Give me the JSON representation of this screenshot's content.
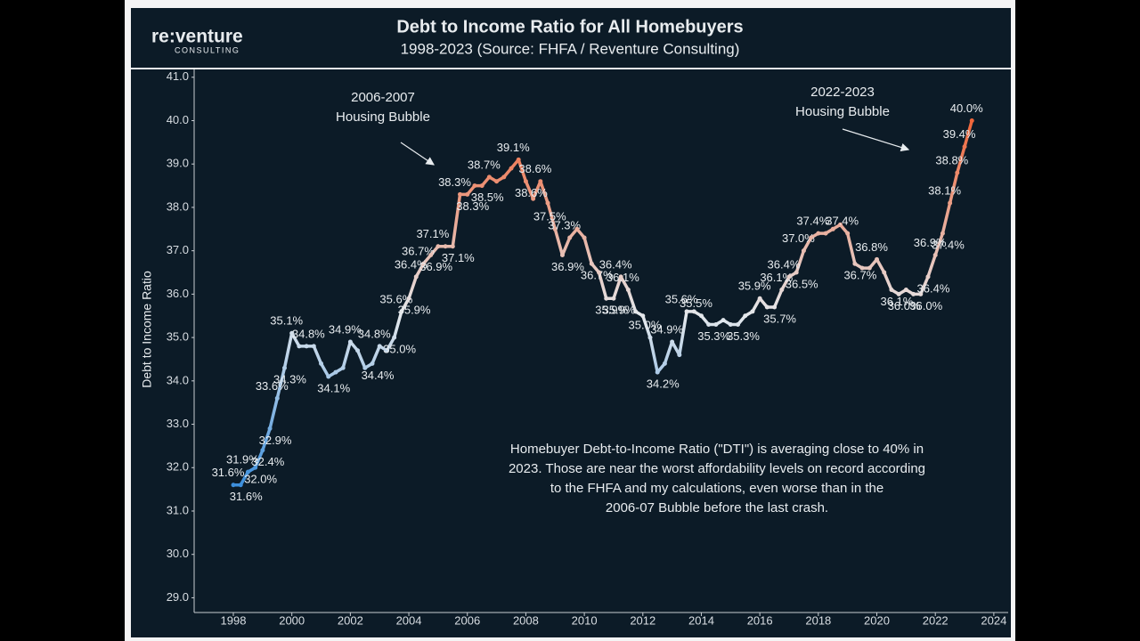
{
  "chart_data": {
    "type": "line",
    "brand": "re:venture",
    "brand_sub": "CONSULTING",
    "title": "Debt to Income Ratio for All Homebuyers",
    "subtitle": "1998-2023 (Source: FHFA / Reventure Consulting)",
    "y_label": "Debt to Income Ratio",
    "x": [
      1998,
      1998.25,
      1998.5,
      1998.75,
      1999,
      1999.25,
      1999.5,
      1999.75,
      2000,
      2000.25,
      2000.5,
      2000.75,
      2001,
      2001.25,
      2001.5,
      2001.75,
      2002,
      2002.25,
      2002.5,
      2002.75,
      2003,
      2003.25,
      2003.5,
      2003.75,
      2004,
      2004.25,
      2004.5,
      2004.75,
      2005,
      2005.25,
      2005.5,
      2005.75,
      2006,
      2006.25,
      2006.5,
      2006.75,
      2007,
      2007.25,
      2007.5,
      2007.75,
      2008,
      2008.25,
      2008.5,
      2008.75,
      2009,
      2009.25,
      2009.5,
      2009.75,
      2010,
      2010.25,
      2010.5,
      2010.75,
      2011,
      2011.25,
      2011.5,
      2011.75,
      2012,
      2012.25,
      2012.5,
      2012.75,
      2013,
      2013.25,
      2013.5,
      2013.75,
      2014,
      2014.25,
      2014.5,
      2014.75,
      2015,
      2015.25,
      2015.5,
      2015.75,
      2016,
      2016.25,
      2016.5,
      2016.75,
      2017,
      2017.25,
      2017.5,
      2017.75,
      2018,
      2018.25,
      2018.5,
      2018.75,
      2019,
      2019.25,
      2019.5,
      2019.75,
      2020,
      2020.25,
      2020.5,
      2020.75,
      2021,
      2021.25,
      2021.5,
      2021.75,
      2022,
      2022.25,
      2022.5,
      2022.75,
      2023,
      2023.25
    ],
    "values": [
      31.6,
      31.6,
      31.9,
      32.0,
      32.4,
      32.9,
      33.6,
      34.3,
      35.1,
      34.8,
      34.8,
      34.8,
      34.4,
      34.1,
      34.2,
      34.3,
      34.9,
      34.7,
      34.3,
      34.4,
      34.8,
      34.7,
      35.0,
      35.6,
      35.9,
      36.4,
      36.7,
      36.9,
      37.1,
      37.1,
      37.1,
      38.3,
      38.3,
      38.5,
      38.5,
      38.7,
      38.6,
      38.7,
      38.9,
      39.1,
      38.6,
      38.2,
      38.6,
      38.1,
      37.5,
      36.9,
      37.3,
      37.5,
      37.3,
      36.7,
      36.5,
      35.9,
      35.9,
      36.4,
      36.1,
      35.6,
      35.5,
      35.0,
      34.2,
      34.4,
      34.9,
      34.6,
      35.6,
      35.6,
      35.5,
      35.3,
      35.3,
      35.4,
      35.3,
      35.3,
      35.5,
      35.6,
      35.9,
      35.7,
      35.7,
      36.1,
      36.4,
      36.5,
      37.0,
      37.3,
      37.4,
      37.4,
      37.5,
      37.6,
      37.4,
      36.7,
      36.6,
      36.6,
      36.8,
      36.5,
      36.1,
      36.0,
      36.1,
      36.0,
      36.0,
      36.4,
      36.9,
      37.4,
      38.1,
      38.8,
      39.4,
      40.0
    ],
    "value_labels": [
      "31.6%",
      "31.6%",
      "31.9%",
      "32.0%",
      "32.4%",
      "32.9%",
      "33.6%",
      "34.3%",
      "35.1%",
      null,
      null,
      "34.8%",
      null,
      "34.1%",
      null,
      null,
      "34.9%",
      null,
      null,
      "34.4%",
      "34.8%",
      null,
      "35.0%",
      "35.6%",
      "35.9%",
      "36.4%",
      "36.7%",
      "36.9%",
      "37.1%",
      null,
      "37.1%",
      "38.3%",
      "38.3%",
      null,
      "38.5%",
      "38.7%",
      null,
      null,
      null,
      "39.1%",
      "38.6%",
      null,
      "38.6%",
      null,
      "37.5%",
      "36.9%",
      "37.3%",
      null,
      null,
      "36.7%",
      null,
      "35.9%",
      "35.9%",
      "36.4%",
      "36.1%",
      null,
      null,
      "35.0%",
      "34.2%",
      null,
      "34.9%",
      null,
      "35.6%",
      null,
      "35.5%",
      "35.3%",
      null,
      null,
      null,
      "35.3%",
      null,
      null,
      "35.9%",
      null,
      "35.7%",
      "36.1%",
      "36.4%",
      "36.5%",
      "37.0%",
      null,
      "37.4%",
      null,
      null,
      null,
      "37.4%",
      "36.7%",
      null,
      null,
      "36.8%",
      null,
      "36.1%",
      "36.0%",
      null,
      null,
      "36.0%",
      "36.4%",
      "36.9%",
      "37.4%",
      "38.1%",
      "38.8%",
      "39.4%",
      "40.0%"
    ],
    "colorscale": [
      {
        "value": 31.6,
        "color": "#3d8fdc"
      },
      {
        "value": 35.5,
        "color": "#e4e8ec"
      },
      {
        "value": 40.0,
        "color": "#f0663a"
      }
    ],
    "xlim": [
      1996.66,
      2024.43
    ],
    "ylim": [
      28.66,
      41.18
    ],
    "xticks": [
      1998,
      2000,
      2002,
      2004,
      2006,
      2008,
      2010,
      2012,
      2014,
      2016,
      2018,
      2020,
      2022,
      2024
    ],
    "yticks": [
      {
        "value": 29,
        "label": "29.0"
      },
      {
        "value": 30,
        "label": "30.0"
      },
      {
        "value": 31,
        "label": "31.0"
      },
      {
        "value": 32,
        "label": "32.0"
      },
      {
        "value": 33,
        "label": "33.0"
      },
      {
        "value": 34,
        "label": "34.0"
      },
      {
        "value": 35,
        "label": "35.0"
      },
      {
        "value": 36,
        "label": "36.0"
      },
      {
        "value": 37,
        "label": "37.0"
      },
      {
        "value": 38,
        "label": "38.0"
      },
      {
        "value": 39,
        "label": "39.0"
      },
      {
        "value": 40,
        "label": "40.0"
      },
      {
        "value": 41,
        "label": "41.0"
      }
    ],
    "annotations": [
      {
        "lines": [
          "2006-2007",
          "Housing Bubble"
        ]
      },
      {
        "lines": [
          "2022-2023",
          "Housing Bubble"
        ]
      },
      {
        "lines": [
          "Homebuyer Debt-to-Income Ratio (\"DTI\") is averaging close to 40% in",
          "2023. Those are near the worst affordability levels on record according",
          "to the FHFA and my calculations, even worse than in the",
          "2006-07 Bubble before the last crash."
        ]
      }
    ]
  }
}
